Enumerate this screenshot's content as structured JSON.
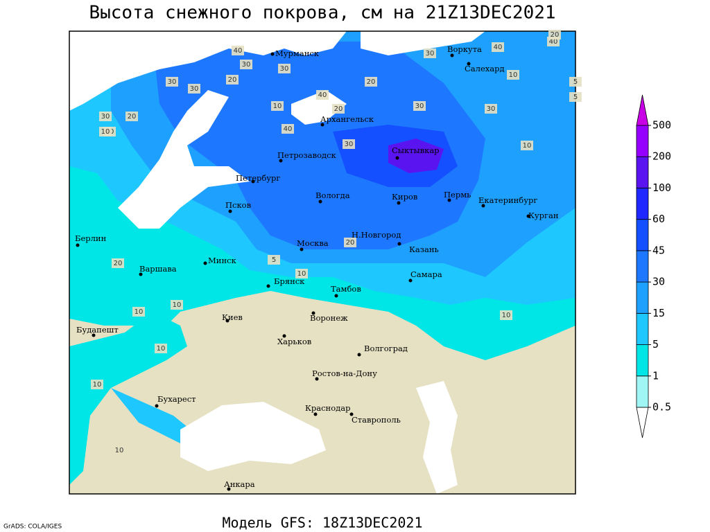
{
  "title": "Высота снежного покрова, см на 21Z13DEC2021",
  "footer": "Модель GFS: 18Z13DEC2021",
  "credit": "GrADS: COLA/IGES",
  "colorbar": {
    "levels": [
      0.5,
      1,
      5,
      15,
      30,
      45,
      60,
      100,
      200,
      500
    ],
    "colors": [
      "#ffffff",
      "#a0f5f5",
      "#00e6e6",
      "#1ec8ff",
      "#1ea0ff",
      "#1e78ff",
      "#1450ff",
      "#1e28ff",
      "#5a14f0",
      "#9600ff",
      "#c800e6"
    ]
  },
  "cities": [
    "Мурманск",
    "Воркута",
    "Салехард",
    "Архангельск",
    "Петрозаводск",
    "Сыктывкар",
    "Петербург",
    "Вологда",
    "Киров",
    "Пермь",
    "Екатеринбург",
    "Курган",
    "Псков",
    "Берлин",
    "Москва",
    "Н.Новгород",
    "Казань",
    "Варшава",
    "Минск",
    "Самара",
    "Брянск",
    "Тамбов",
    "Киев",
    "Воронеж",
    "Будапешт",
    "Харьков",
    "Волгоград",
    "Ростов-на-Дону",
    "Бухарест",
    "Краснодар",
    "Ставрополь",
    "Анкара"
  ],
  "contour_labels": [
    40,
    30,
    30,
    20,
    30,
    30,
    40,
    40,
    20,
    10,
    20,
    30,
    20,
    30,
    30,
    40,
    30,
    40,
    30,
    10,
    10,
    20,
    10,
    5,
    5,
    10,
    20,
    5,
    10,
    20,
    10,
    10,
    10,
    10,
    10,
    10
  ]
}
